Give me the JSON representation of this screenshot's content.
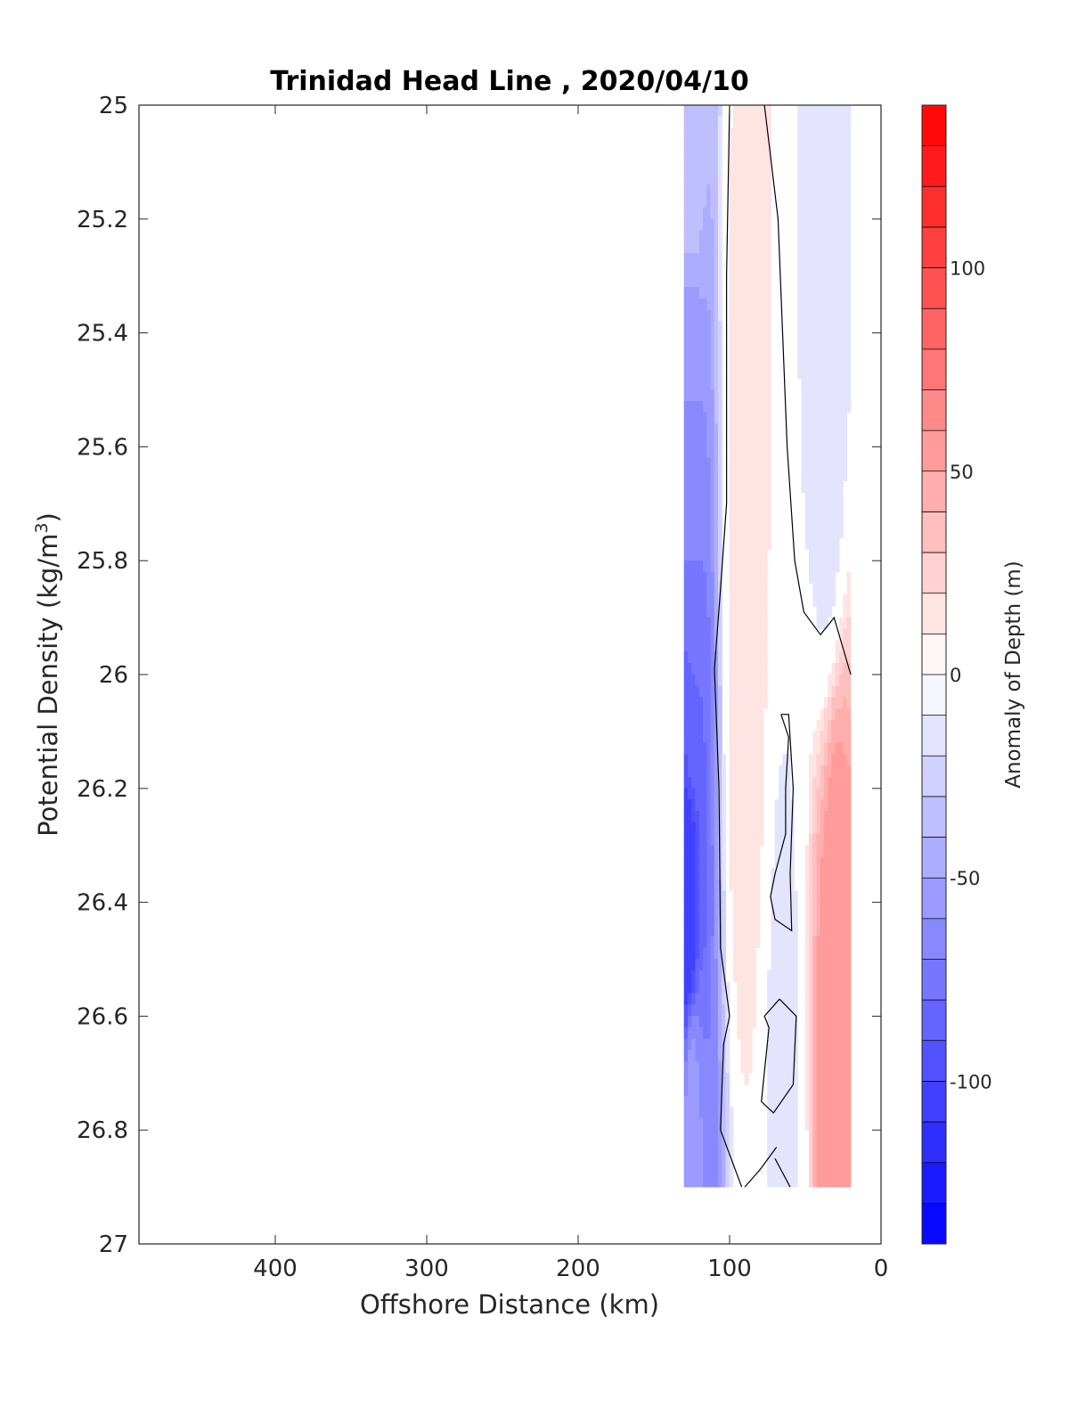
{
  "chart_data": {
    "type": "contourf",
    "title": "Trinidad Head Line , 2020/04/10",
    "xlabel": "Offshore Distance (km)",
    "ylabel_main": "Potential Density (kg/m",
    "ylabel_sup": "3",
    "ylabel_tail": ")",
    "colorbar_label": "Anomaly of Depth (m)",
    "xlim": [
      490,
      0
    ],
    "x_reversed": true,
    "ylim": [
      25,
      27
    ],
    "y_reversed": true,
    "x_ticks": [
      400,
      300,
      200,
      100,
      0
    ],
    "x_tick_labels": [
      "400",
      "300",
      "200",
      "100",
      "0"
    ],
    "y_ticks": [
      25,
      25.2,
      25.4,
      25.6,
      25.8,
      26,
      26.2,
      26.4,
      26.6,
      26.8,
      27
    ],
    "y_tick_labels": [
      "25",
      "25.2",
      "25.4",
      "25.6",
      "25.8",
      "26",
      "26.2",
      "26.4",
      "26.6",
      "26.8",
      "27"
    ],
    "colorbar_range": [
      -140,
      140
    ],
    "colorbar_step": 10,
    "colorbar_ticks": [
      100,
      50,
      0,
      -50,
      -100
    ],
    "colorbar_tick_labels": [
      "100",
      "50",
      "0",
      "-50",
      "-100"
    ],
    "colormap": {
      "negative": "#0000ff",
      "zero": "#ffffff",
      "positive": "#ff0000"
    },
    "data_extent": {
      "x": [
        130,
        20
      ],
      "y": [
        25,
        26.9
      ]
    },
    "field_description": "Negative anomalies (blue, down to about -110 m near 26.4) along the offshore edge at 130-110 km; positive anomalies (red, up to about +60 m) at 30-40 km offshore between 26.4 and 26.8; weak positive band near 90 km; weak negative near 20-60 km for densities 25.0-25.8.",
    "sample_points": [
      {
        "x": 125,
        "y": 25.0,
        "value": -30
      },
      {
        "x": 125,
        "y": 25.6,
        "value": -60
      },
      {
        "x": 125,
        "y": 26.0,
        "value": -80
      },
      {
        "x": 127,
        "y": 26.4,
        "value": -110
      },
      {
        "x": 125,
        "y": 26.8,
        "value": -55
      },
      {
        "x": 90,
        "y": 25.4,
        "value": 15
      },
      {
        "x": 90,
        "y": 26.0,
        "value": 20
      },
      {
        "x": 35,
        "y": 25.5,
        "value": -20
      },
      {
        "x": 30,
        "y": 26.55,
        "value": 60
      },
      {
        "x": 65,
        "y": 26.7,
        "value": -12
      }
    ],
    "zero_contours": [
      [
        [
          100,
          25.0
        ],
        [
          102,
          25.3
        ],
        [
          102,
          25.7
        ],
        [
          106,
          25.85
        ],
        [
          110,
          25.99
        ],
        [
          107,
          26.2
        ],
        [
          106,
          26.48
        ],
        [
          100,
          26.6
        ],
        [
          104,
          26.65
        ],
        [
          106,
          26.8
        ],
        [
          92,
          26.9
        ]
      ],
      [
        [
          77,
          25.0
        ],
        [
          68,
          25.2
        ],
        [
          65,
          25.4
        ],
        [
          62,
          25.6
        ],
        [
          57,
          25.8
        ],
        [
          51,
          25.89
        ],
        [
          40,
          25.93
        ],
        [
          31,
          25.9
        ],
        [
          20,
          26.0
        ]
      ],
      [
        [
          66,
          26.07
        ],
        [
          61,
          26.11
        ],
        [
          63,
          26.2
        ],
        [
          63,
          26.28
        ],
        [
          70,
          26.35
        ],
        [
          73,
          26.39
        ],
        [
          70,
          26.43
        ],
        [
          59,
          26.45
        ],
        [
          60,
          26.35
        ],
        [
          58,
          26.2
        ],
        [
          61,
          26.07
        ],
        [
          66,
          26.07
        ]
      ],
      [
        [
          67,
          26.57
        ],
        [
          77,
          26.6
        ],
        [
          74,
          26.62
        ],
        [
          79,
          26.75
        ],
        [
          71,
          26.77
        ],
        [
          58,
          26.72
        ],
        [
          56,
          26.6
        ],
        [
          67,
          26.57
        ]
      ],
      [
        [
          69,
          26.83
        ],
        [
          80,
          26.87
        ],
        [
          90,
          26.9
        ]
      ],
      [
        [
          60,
          26.9
        ],
        [
          70,
          26.85
        ]
      ]
    ]
  }
}
